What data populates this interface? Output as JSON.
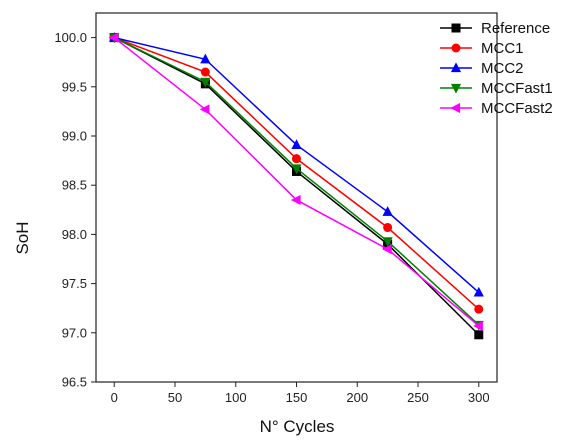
{
  "chart_data": {
    "type": "line",
    "title": "",
    "xlabel": "N° Cycles",
    "ylabel": "SoH",
    "xlim": [
      -15,
      315
    ],
    "ylim": [
      96.5,
      100.25
    ],
    "x_ticks": [
      0,
      50,
      100,
      150,
      200,
      250,
      300
    ],
    "x_tick_labels": [
      "0",
      "50",
      "100",
      "150",
      "200",
      "250",
      "300"
    ],
    "y_ticks": [
      96.5,
      97.0,
      97.5,
      98.0,
      98.5,
      99.0,
      99.5,
      100.0
    ],
    "y_tick_labels": [
      "96.5",
      "97.0",
      "97.5",
      "98.0",
      "98.5",
      "99.0",
      "99.5",
      "100.0"
    ],
    "grid": false,
    "legend_position": "top-right",
    "x": [
      0,
      75,
      150,
      225,
      300
    ],
    "series": [
      {
        "name": "Reference",
        "values": [
          100.0,
          99.53,
          98.64,
          97.9,
          96.98
        ],
        "color": "#000000",
        "marker": "square"
      },
      {
        "name": "MCC1",
        "values": [
          100.0,
          99.65,
          98.77,
          98.07,
          97.24
        ],
        "color": "#ff0000",
        "marker": "circle"
      },
      {
        "name": "MCC2",
        "values": [
          100.0,
          99.78,
          98.91,
          98.23,
          97.41
        ],
        "color": "#0000ff",
        "marker": "triangle-up"
      },
      {
        "name": "MCCFast1",
        "values": [
          100.0,
          99.55,
          98.67,
          97.93,
          97.08
        ],
        "color": "#008000",
        "marker": "triangle-down"
      },
      {
        "name": "MCCFast2",
        "values": [
          100.0,
          99.27,
          98.35,
          97.85,
          97.07
        ],
        "color": "#ff00ff",
        "marker": "triangle-left"
      }
    ]
  }
}
